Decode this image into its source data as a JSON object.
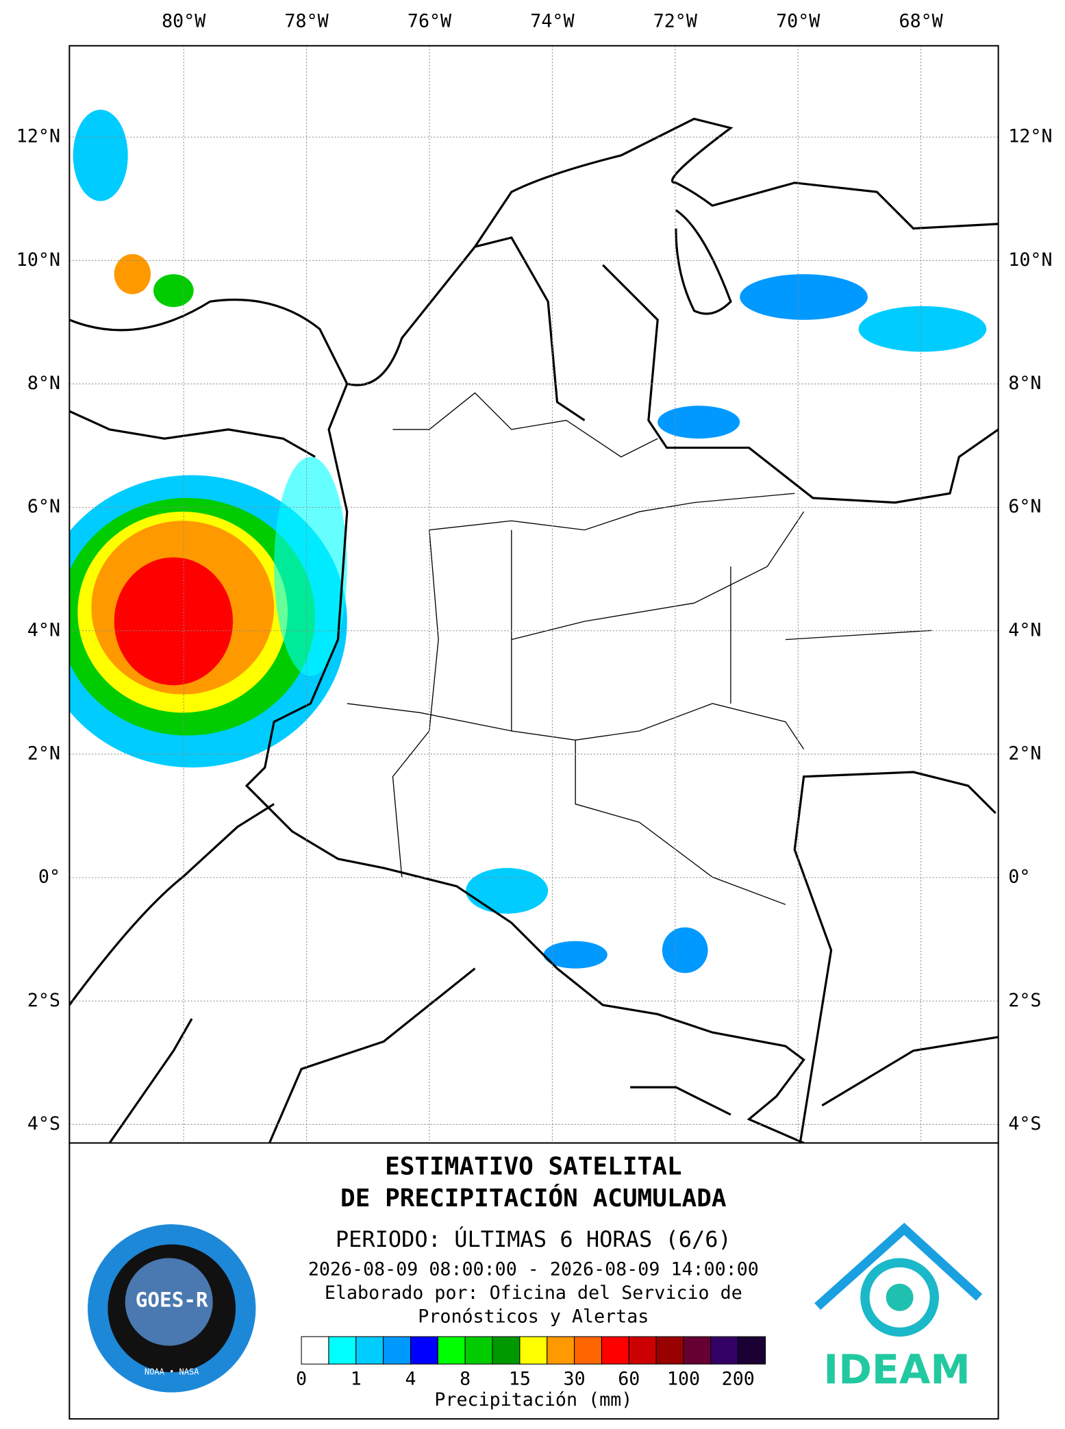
{
  "map": {
    "lonlim": [
      -81.86,
      -66.74
    ],
    "latlim": [
      -4.3,
      13.48
    ],
    "lon_ticks": [
      {
        "value": -80,
        "label": "80°W"
      },
      {
        "value": -78,
        "label": "78°W"
      },
      {
        "value": -76,
        "label": "76°W"
      },
      {
        "value": -74,
        "label": "74°W"
      },
      {
        "value": -72,
        "label": "72°W"
      },
      {
        "value": -70,
        "label": "70°W"
      },
      {
        "value": -68,
        "label": "68°W"
      }
    ],
    "lat_ticks": [
      {
        "value": 12,
        "label": "12°N"
      },
      {
        "value": 10,
        "label": "10°N"
      },
      {
        "value": 8,
        "label": "8°N"
      },
      {
        "value": 6,
        "label": "6°N"
      },
      {
        "value": 4,
        "label": "4°N"
      },
      {
        "value": 2,
        "label": "2°N"
      },
      {
        "value": 0,
        "label": "0°"
      },
      {
        "value": -2,
        "label": "2°S"
      },
      {
        "value": -4,
        "label": "4°S"
      }
    ]
  },
  "panel": {
    "title_line1": "ESTIMATIVO SATELITAL",
    "title_line2": "DE PRECIPITACIÓN ACUMULADA",
    "period": "PERIODO: ÚLTIMAS 6 HORAS (6/6)",
    "dates": "2026-08-09 08:00:00 - 2026-08-09 14:00:00",
    "author_line1": "Elaborado por: Oficina del Servicio de",
    "author_line2": "Pronósticos y Alertas",
    "colorbar_colors": [
      "#ffffff",
      "#00ffff",
      "#00ccff",
      "#0099ff",
      "#0000ff",
      "#00ff00",
      "#00cc00",
      "#009900",
      "#ffff00",
      "#ff9900",
      "#ff6600",
      "#ff0000",
      "#cc0000",
      "#990000",
      "#660033",
      "#330066",
      "#1a0033"
    ],
    "colorbar_labels": [
      "0",
      "1",
      "4",
      "8",
      "15",
      "30",
      "60",
      "100",
      "200"
    ],
    "colorbar_title": "Precipitación (mm)",
    "logo_left": "GOES-R",
    "logo_left_sub": "NOAA • NASA",
    "logo_right": "IDEAM"
  }
}
